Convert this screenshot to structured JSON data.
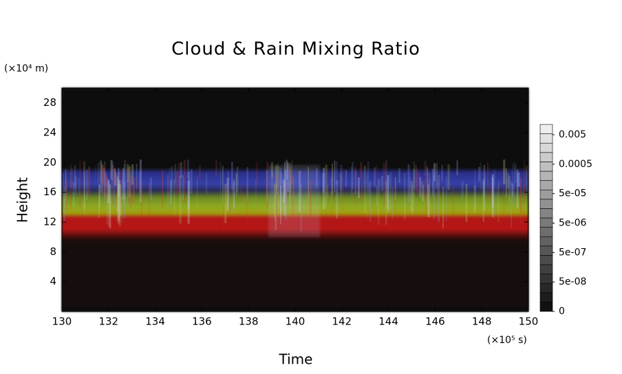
{
  "chart_data": {
    "type": "heatmap",
    "title": "Cloud & Rain Mixing Ratio",
    "x_label": "Time",
    "y_label": "Height",
    "x_unit": "(×10⁵ s)",
    "y_unit": "(×10⁴ m)",
    "xlim": [
      130,
      150
    ],
    "xticks": [
      130,
      132,
      134,
      136,
      138,
      140,
      142,
      144,
      146,
      148,
      150
    ],
    "ylim": [
      0,
      30
    ],
    "yticks": [
      4,
      8,
      12,
      16,
      20,
      24,
      28
    ],
    "colorbar": {
      "ticks": [
        0,
        {
          "value": 5e-08,
          "label": "5e-08"
        },
        {
          "value": 5e-07,
          "label": "5e-07"
        },
        {
          "value": 5e-06,
          "label": "5e-06"
        },
        {
          "value": 5e-05,
          "label": "5e-05"
        },
        0.0005,
        0.005
      ]
    }
  }
}
